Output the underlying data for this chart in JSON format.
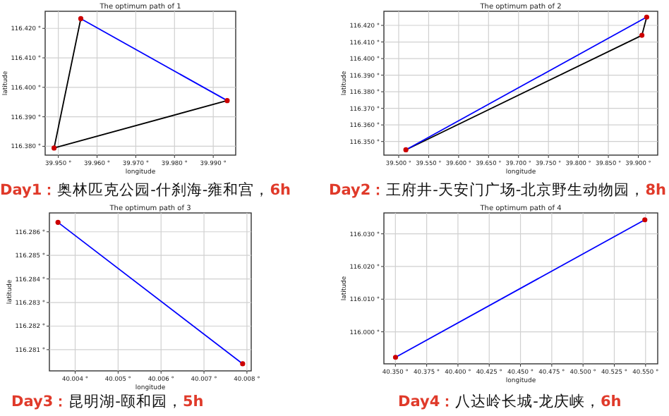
{
  "chart_data": [
    {
      "type": "line",
      "title": "The optimum path of 1",
      "xlabel": "longitude",
      "ylabel": "latitude",
      "grid": true,
      "xlim": [
        39.9466,
        39.9958
      ],
      "ylim": [
        116.377,
        116.4258
      ],
      "xticks": [
        {
          "value": 39.95,
          "label": "39.950 °"
        },
        {
          "value": 39.96,
          "label": "39.960 °"
        },
        {
          "value": 39.97,
          "label": "39.970 °"
        },
        {
          "value": 39.98,
          "label": "39.980 °"
        },
        {
          "value": 39.99,
          "label": "39.990 °"
        }
      ],
      "yticks": [
        {
          "value": 116.38,
          "label": "116.380 °"
        },
        {
          "value": 116.39,
          "label": "116.390 °"
        },
        {
          "value": 116.4,
          "label": "116.400 °"
        },
        {
          "value": 116.41,
          "label": "116.410 °"
        },
        {
          "value": 116.42,
          "label": "116.420 °"
        }
      ],
      "series": [
        {
          "color": "#000000",
          "x": [
            39.9936,
            39.9489,
            39.9558
          ],
          "values": [
            116.3955,
            116.3794,
            116.4233
          ]
        },
        {
          "color": "#0000ff",
          "x": [
            39.9558,
            39.9936
          ],
          "values": [
            116.4233,
            116.3955
          ]
        },
        {
          "type": "scatter",
          "marker": "circle",
          "color": "#cc0000",
          "x": [
            39.9489,
            39.9558,
            39.9936
          ],
          "values": [
            116.3794,
            116.4233,
            116.3955
          ]
        }
      ],
      "annotations": [
        "Day1：奥林匹克公园-什刹海-雍和宫，6h"
      ]
    },
    {
      "type": "line",
      "title": "The optimum path of 2",
      "xlabel": "longitude",
      "ylabel": "latitude",
      "grid": true,
      "xlim": [
        39.4753,
        39.9324
      ],
      "ylim": [
        116.3418,
        116.4285
      ],
      "xticks": [
        {
          "value": 39.5,
          "label": "39.500 °"
        },
        {
          "value": 39.55,
          "label": "39.550 °"
        },
        {
          "value": 39.6,
          "label": "39.600 °"
        },
        {
          "value": 39.65,
          "label": "39.650 °"
        },
        {
          "value": 39.7,
          "label": "39.700 °"
        },
        {
          "value": 39.75,
          "label": "39.750 °"
        },
        {
          "value": 39.8,
          "label": "39.800 °"
        },
        {
          "value": 39.85,
          "label": "39.850 °"
        },
        {
          "value": 39.9,
          "label": "39.900 °"
        }
      ],
      "yticks": [
        {
          "value": 116.35,
          "label": "116.350 °"
        },
        {
          "value": 116.36,
          "label": "116.360 °"
        },
        {
          "value": 116.37,
          "label": "116.370 °"
        },
        {
          "value": 116.38,
          "label": "116.380 °"
        },
        {
          "value": 116.39,
          "label": "116.390 °"
        },
        {
          "value": 116.4,
          "label": "116.400 °"
        },
        {
          "value": 116.41,
          "label": "116.410 °"
        },
        {
          "value": 116.42,
          "label": "116.420 °"
        }
      ],
      "series": [
        {
          "color": "#000000",
          "x": [
            39.914,
            39.906,
            39.512
          ],
          "values": [
            116.425,
            116.414,
            116.345
          ]
        },
        {
          "color": "#0000ff",
          "x": [
            39.512,
            39.914
          ],
          "values": [
            116.345,
            116.425
          ]
        },
        {
          "type": "scatter",
          "marker": "circle",
          "color": "#cc0000",
          "x": [
            39.512,
            39.906,
            39.914
          ],
          "values": [
            116.345,
            116.414,
            116.425
          ]
        }
      ],
      "annotations": [
        "Day2：王府井-天安门广场-北京野生动物园，8h"
      ]
    },
    {
      "type": "line",
      "title": "The optimum path of 3",
      "xlabel": "longitude",
      "ylabel": "latitude",
      "grid": true,
      "xlim": [
        40.0034,
        40.0081
      ],
      "ylim": [
        116.2801,
        116.2868
      ],
      "xticks": [
        {
          "value": 40.004,
          "label": "40.004 °"
        },
        {
          "value": 40.005,
          "label": "40.005 °"
        },
        {
          "value": 40.006,
          "label": "40.006 °"
        },
        {
          "value": 40.007,
          "label": "40.007 °"
        },
        {
          "value": 40.008,
          "label": "40.008 °"
        }
      ],
      "yticks": [
        {
          "value": 116.281,
          "label": "116.281 °"
        },
        {
          "value": 116.282,
          "label": "116.282 °"
        },
        {
          "value": 116.283,
          "label": "116.283 °"
        },
        {
          "value": 116.284,
          "label": "116.284 °"
        },
        {
          "value": 116.285,
          "label": "116.285 °"
        },
        {
          "value": 116.286,
          "label": "116.286 °"
        }
      ],
      "series": [
        {
          "color": "#0000ff",
          "x": [
            40.0036,
            40.0079
          ],
          "values": [
            116.2864,
            116.2804
          ]
        },
        {
          "type": "scatter",
          "marker": "circle",
          "color": "#cc0000",
          "x": [
            40.0036,
            40.0079
          ],
          "values": [
            116.2864,
            116.2804
          ]
        }
      ],
      "annotations": [
        "Day3：昆明湖-颐和园，5h"
      ]
    },
    {
      "type": "line",
      "title": "The optimum path of 4",
      "xlabel": "longitude",
      "ylabel": "latitude",
      "grid": true,
      "xlim": [
        40.3408,
        40.5597
      ],
      "ylim": [
        115.9902,
        116.0364
      ],
      "xticks": [
        {
          "value": 40.35,
          "label": "40.350 °"
        },
        {
          "value": 40.375,
          "label": "40.375 °"
        },
        {
          "value": 40.4,
          "label": "40.400 °"
        },
        {
          "value": 40.425,
          "label": "40.425 °"
        },
        {
          "value": 40.45,
          "label": "40.450 °"
        },
        {
          "value": 40.475,
          "label": "40.475 °"
        },
        {
          "value": 40.5,
          "label": "40.500 °"
        },
        {
          "value": 40.525,
          "label": "40.525 °"
        },
        {
          "value": 40.55,
          "label": "40.550 °"
        }
      ],
      "yticks": [
        {
          "value": 116.0,
          "label": "116.000 °"
        },
        {
          "value": 116.01,
          "label": "116.010 °"
        },
        {
          "value": 116.02,
          "label": "116.020 °"
        },
        {
          "value": 116.03,
          "label": "116.030 °"
        }
      ],
      "series": [
        {
          "color": "#0000ff",
          "x": [
            40.3501,
            40.5494
          ],
          "values": [
            115.9922,
            116.0343
          ]
        },
        {
          "type": "scatter",
          "marker": "circle",
          "color": "#cc0000",
          "x": [
            40.3501,
            40.5494
          ],
          "values": [
            115.9922,
            116.0343
          ]
        }
      ],
      "annotations": [
        "Day4：八达岭长城-龙庆峡，6h"
      ]
    }
  ]
}
